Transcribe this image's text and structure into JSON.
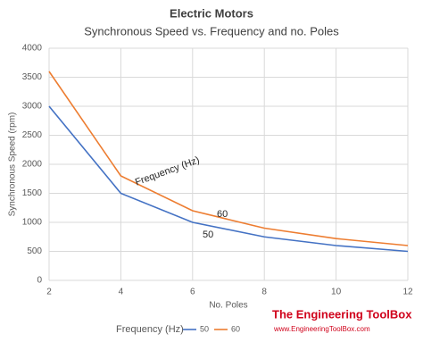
{
  "chart_data": {
    "type": "line",
    "title": "Electric Motors",
    "subtitle": "Synchronous Speed vs. Frequency and no. Poles",
    "x_label": "No. Poles",
    "y_label": "Synchronous Speed (rpm)",
    "x": [
      2,
      4,
      6,
      8,
      10,
      12
    ],
    "series": [
      {
        "name": "50",
        "color": "#4472c4",
        "values": [
          3000,
          1500,
          1000,
          750,
          600,
          500
        ]
      },
      {
        "name": "60",
        "color": "#ed7d31",
        "values": [
          3600,
          1800,
          1200,
          900,
          720,
          600
        ]
      }
    ],
    "xlim": [
      2,
      12
    ],
    "xticks": [
      2,
      4,
      6,
      8,
      10,
      12
    ],
    "ylim": [
      0,
      4000
    ],
    "yticks": [
      0,
      500,
      1000,
      1500,
      2000,
      2500,
      3000,
      3500,
      4000
    ],
    "grid": true,
    "legend_title": "Frequency (Hz)",
    "legend": "bottom",
    "annotations": [
      "Frequency (Hz)",
      "60",
      "50"
    ],
    "watermark": {
      "title": "The Engineering ToolBox",
      "url": "www.EngineeringToolBox.com"
    }
  }
}
